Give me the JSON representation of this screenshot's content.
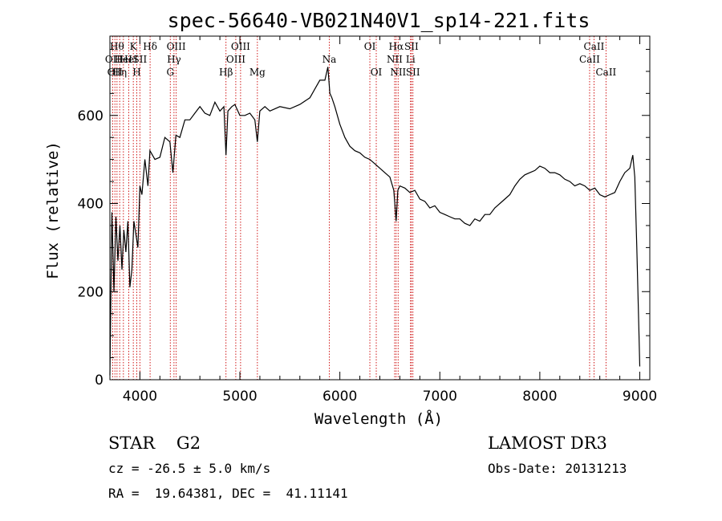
{
  "chart_data": {
    "type": "line",
    "title": "spec-56640-VB021N40V1_sp14-221.fits",
    "xlabel": "Wavelength (Å)",
    "ylabel": "Flux (relative)",
    "xlim": [
      3700,
      9100
    ],
    "ylim": [
      0,
      780
    ],
    "x_ticks": [
      "4000",
      "5000",
      "6000",
      "7000",
      "8000",
      "9000"
    ],
    "y_ticks": [
      "0",
      "200",
      "400",
      "600"
    ],
    "series": [
      {
        "x": [
          3700,
          3720,
          3740,
          3760,
          3780,
          3800,
          3820,
          3840,
          3860,
          3880,
          3900,
          3920,
          3940,
          3960,
          3980,
          4000,
          4020,
          4050,
          4080,
          4100,
          4150,
          4200,
          4250,
          4300,
          4330,
          4360,
          4400,
          4450,
          4500,
          4550,
          4600,
          4650,
          4700,
          4750,
          4800,
          4840,
          4861,
          4880,
          4920,
          4950,
          5000,
          5050,
          5100,
          5150,
          5175,
          5200,
          5250,
          5300,
          5400,
          5500,
          5600,
          5700,
          5750,
          5800,
          5850,
          5880,
          5900,
          5920,
          5950,
          6000,
          6050,
          6100,
          6150,
          6200,
          6250,
          6300,
          6350,
          6400,
          6450,
          6500,
          6540,
          6563,
          6580,
          6600,
          6650,
          6700,
          6750,
          6800,
          6850,
          6900,
          6950,
          7000,
          7050,
          7100,
          7150,
          7200,
          7250,
          7300,
          7350,
          7400,
          7450,
          7500,
          7550,
          7600,
          7650,
          7700,
          7750,
          7800,
          7850,
          7900,
          7950,
          8000,
          8050,
          8100,
          8150,
          8200,
          8250,
          8300,
          8350,
          8400,
          8450,
          8500,
          8550,
          8600,
          8650,
          8700,
          8750,
          8800,
          8850,
          8900,
          8930,
          8950,
          8970,
          8990,
          9000
        ],
        "values": [
          10,
          380,
          200,
          370,
          270,
          350,
          250,
          340,
          290,
          360,
          210,
          250,
          360,
          330,
          300,
          440,
          420,
          500,
          440,
          520,
          500,
          505,
          550,
          540,
          470,
          555,
          550,
          590,
          590,
          605,
          620,
          605,
          600,
          630,
          610,
          620,
          510,
          610,
          620,
          625,
          600,
          600,
          605,
          590,
          540,
          610,
          620,
          610,
          620,
          615,
          625,
          640,
          660,
          680,
          680,
          710,
          650,
          640,
          620,
          580,
          550,
          530,
          520,
          515,
          505,
          500,
          490,
          480,
          470,
          460,
          430,
          360,
          430,
          440,
          435,
          425,
          430,
          410,
          405,
          390,
          395,
          380,
          375,
          370,
          365,
          365,
          355,
          350,
          365,
          360,
          375,
          375,
          390,
          400,
          410,
          420,
          440,
          455,
          465,
          470,
          475,
          485,
          480,
          470,
          470,
          465,
          455,
          450,
          440,
          445,
          440,
          430,
          435,
          420,
          415,
          420,
          425,
          450,
          470,
          480,
          510,
          460,
          300,
          120,
          30
        ]
      }
    ],
    "line_markers": [
      {
        "w": 3728,
        "label": "OII",
        "row": 2
      },
      {
        "w": 3750,
        "label": "OII",
        "row": 3
      },
      {
        "w": 3771,
        "label": "Hθ",
        "row": 1
      },
      {
        "w": 3798,
        "label": "Hη",
        "row": 3
      },
      {
        "w": 3835,
        "label": "HeI",
        "row": 2
      },
      {
        "w": 3889,
        "label": "HeI",
        "row": 2
      },
      {
        "w": 3934,
        "label": "K",
        "row": 1
      },
      {
        "w": 3969,
        "label": "H",
        "row": 3
      },
      {
        "w": 4000,
        "label": "SII",
        "row": 2
      },
      {
        "w": 4102,
        "label": "Hδ",
        "row": 1
      },
      {
        "w": 4304,
        "label": "G",
        "row": 3
      },
      {
        "w": 4341,
        "label": "Hγ",
        "row": 2
      },
      {
        "w": 4363,
        "label": "OIII",
        "row": 1
      },
      {
        "w": 4861,
        "label": "Hβ",
        "row": 3
      },
      {
        "w": 4959,
        "label": "OIII",
        "row": 2
      },
      {
        "w": 5007,
        "label": "OIII",
        "row": 1
      },
      {
        "w": 5175,
        "label": "Mg",
        "row": 3
      },
      {
        "w": 5894,
        "label": "Na",
        "row": 2
      },
      {
        "w": 6300,
        "label": "OI",
        "row": 1
      },
      {
        "w": 6364,
        "label": "OI",
        "row": 3
      },
      {
        "w": 6548,
        "label": "NII",
        "row": 2
      },
      {
        "w": 6563,
        "label": "Hα",
        "row": 1
      },
      {
        "w": 6583,
        "label": "NII",
        "row": 3
      },
      {
        "w": 6707,
        "label": "Li",
        "row": 2
      },
      {
        "w": 6716,
        "label": "SII",
        "row": 1
      },
      {
        "w": 6731,
        "label": "SII",
        "row": 3
      },
      {
        "w": 8498,
        "label": "CaII",
        "row": 2
      },
      {
        "w": 8542,
        "label": "CaII",
        "row": 1
      },
      {
        "w": 8662,
        "label": "CaII",
        "row": 3
      }
    ]
  },
  "info": {
    "class_line": "STAR    G2",
    "cz_line": "cz = -26.5 ± 5.0 km/s",
    "coord_line": "RA =  19.64381, DEC =  41.11141",
    "survey": "LAMOST DR3",
    "obs_date": "Obs-Date: 20131213"
  },
  "colors": {
    "axis": "#000000",
    "spectrum": "#000000",
    "line_marker": "#cc0000"
  }
}
